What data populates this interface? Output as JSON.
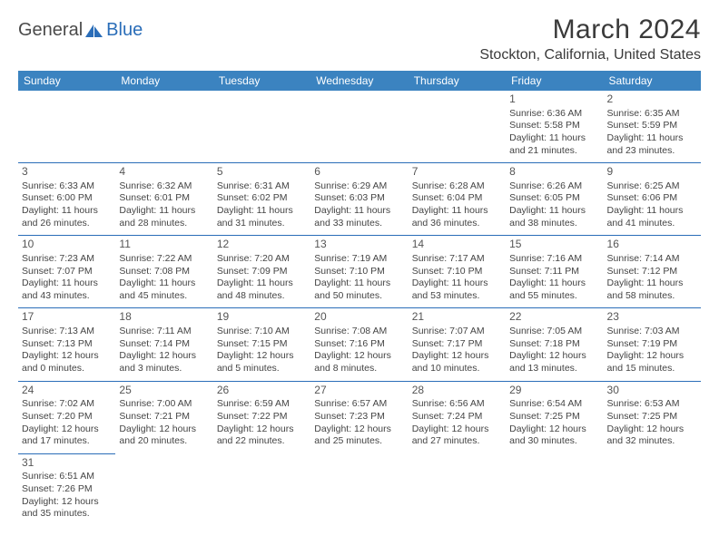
{
  "logo": {
    "part1": "General",
    "part2": "Blue"
  },
  "title": "March 2024",
  "location": "Stockton, California, United States",
  "colors": {
    "header_bg": "#3b83c0",
    "header_fg": "#ffffff",
    "row_border": "#2a6db8",
    "logo_gray": "#4a4a4a",
    "logo_blue": "#2a6db8",
    "text": "#444444"
  },
  "dayNames": [
    "Sunday",
    "Monday",
    "Tuesday",
    "Wednesday",
    "Thursday",
    "Friday",
    "Saturday"
  ],
  "weeks": [
    [
      null,
      null,
      null,
      null,
      null,
      {
        "n": "1",
        "sr": "Sunrise: 6:36 AM",
        "ss": "Sunset: 5:58 PM",
        "d1": "Daylight: 11 hours",
        "d2": "and 21 minutes."
      },
      {
        "n": "2",
        "sr": "Sunrise: 6:35 AM",
        "ss": "Sunset: 5:59 PM",
        "d1": "Daylight: 11 hours",
        "d2": "and 23 minutes."
      }
    ],
    [
      {
        "n": "3",
        "sr": "Sunrise: 6:33 AM",
        "ss": "Sunset: 6:00 PM",
        "d1": "Daylight: 11 hours",
        "d2": "and 26 minutes."
      },
      {
        "n": "4",
        "sr": "Sunrise: 6:32 AM",
        "ss": "Sunset: 6:01 PM",
        "d1": "Daylight: 11 hours",
        "d2": "and 28 minutes."
      },
      {
        "n": "5",
        "sr": "Sunrise: 6:31 AM",
        "ss": "Sunset: 6:02 PM",
        "d1": "Daylight: 11 hours",
        "d2": "and 31 minutes."
      },
      {
        "n": "6",
        "sr": "Sunrise: 6:29 AM",
        "ss": "Sunset: 6:03 PM",
        "d1": "Daylight: 11 hours",
        "d2": "and 33 minutes."
      },
      {
        "n": "7",
        "sr": "Sunrise: 6:28 AM",
        "ss": "Sunset: 6:04 PM",
        "d1": "Daylight: 11 hours",
        "d2": "and 36 minutes."
      },
      {
        "n": "8",
        "sr": "Sunrise: 6:26 AM",
        "ss": "Sunset: 6:05 PM",
        "d1": "Daylight: 11 hours",
        "d2": "and 38 minutes."
      },
      {
        "n": "9",
        "sr": "Sunrise: 6:25 AM",
        "ss": "Sunset: 6:06 PM",
        "d1": "Daylight: 11 hours",
        "d2": "and 41 minutes."
      }
    ],
    [
      {
        "n": "10",
        "sr": "Sunrise: 7:23 AM",
        "ss": "Sunset: 7:07 PM",
        "d1": "Daylight: 11 hours",
        "d2": "and 43 minutes."
      },
      {
        "n": "11",
        "sr": "Sunrise: 7:22 AM",
        "ss": "Sunset: 7:08 PM",
        "d1": "Daylight: 11 hours",
        "d2": "and 45 minutes."
      },
      {
        "n": "12",
        "sr": "Sunrise: 7:20 AM",
        "ss": "Sunset: 7:09 PM",
        "d1": "Daylight: 11 hours",
        "d2": "and 48 minutes."
      },
      {
        "n": "13",
        "sr": "Sunrise: 7:19 AM",
        "ss": "Sunset: 7:10 PM",
        "d1": "Daylight: 11 hours",
        "d2": "and 50 minutes."
      },
      {
        "n": "14",
        "sr": "Sunrise: 7:17 AM",
        "ss": "Sunset: 7:10 PM",
        "d1": "Daylight: 11 hours",
        "d2": "and 53 minutes."
      },
      {
        "n": "15",
        "sr": "Sunrise: 7:16 AM",
        "ss": "Sunset: 7:11 PM",
        "d1": "Daylight: 11 hours",
        "d2": "and 55 minutes."
      },
      {
        "n": "16",
        "sr": "Sunrise: 7:14 AM",
        "ss": "Sunset: 7:12 PM",
        "d1": "Daylight: 11 hours",
        "d2": "and 58 minutes."
      }
    ],
    [
      {
        "n": "17",
        "sr": "Sunrise: 7:13 AM",
        "ss": "Sunset: 7:13 PM",
        "d1": "Daylight: 12 hours",
        "d2": "and 0 minutes."
      },
      {
        "n": "18",
        "sr": "Sunrise: 7:11 AM",
        "ss": "Sunset: 7:14 PM",
        "d1": "Daylight: 12 hours",
        "d2": "and 3 minutes."
      },
      {
        "n": "19",
        "sr": "Sunrise: 7:10 AM",
        "ss": "Sunset: 7:15 PM",
        "d1": "Daylight: 12 hours",
        "d2": "and 5 minutes."
      },
      {
        "n": "20",
        "sr": "Sunrise: 7:08 AM",
        "ss": "Sunset: 7:16 PM",
        "d1": "Daylight: 12 hours",
        "d2": "and 8 minutes."
      },
      {
        "n": "21",
        "sr": "Sunrise: 7:07 AM",
        "ss": "Sunset: 7:17 PM",
        "d1": "Daylight: 12 hours",
        "d2": "and 10 minutes."
      },
      {
        "n": "22",
        "sr": "Sunrise: 7:05 AM",
        "ss": "Sunset: 7:18 PM",
        "d1": "Daylight: 12 hours",
        "d2": "and 13 minutes."
      },
      {
        "n": "23",
        "sr": "Sunrise: 7:03 AM",
        "ss": "Sunset: 7:19 PM",
        "d1": "Daylight: 12 hours",
        "d2": "and 15 minutes."
      }
    ],
    [
      {
        "n": "24",
        "sr": "Sunrise: 7:02 AM",
        "ss": "Sunset: 7:20 PM",
        "d1": "Daylight: 12 hours",
        "d2": "and 17 minutes."
      },
      {
        "n": "25",
        "sr": "Sunrise: 7:00 AM",
        "ss": "Sunset: 7:21 PM",
        "d1": "Daylight: 12 hours",
        "d2": "and 20 minutes."
      },
      {
        "n": "26",
        "sr": "Sunrise: 6:59 AM",
        "ss": "Sunset: 7:22 PM",
        "d1": "Daylight: 12 hours",
        "d2": "and 22 minutes."
      },
      {
        "n": "27",
        "sr": "Sunrise: 6:57 AM",
        "ss": "Sunset: 7:23 PM",
        "d1": "Daylight: 12 hours",
        "d2": "and 25 minutes."
      },
      {
        "n": "28",
        "sr": "Sunrise: 6:56 AM",
        "ss": "Sunset: 7:24 PM",
        "d1": "Daylight: 12 hours",
        "d2": "and 27 minutes."
      },
      {
        "n": "29",
        "sr": "Sunrise: 6:54 AM",
        "ss": "Sunset: 7:25 PM",
        "d1": "Daylight: 12 hours",
        "d2": "and 30 minutes."
      },
      {
        "n": "30",
        "sr": "Sunrise: 6:53 AM",
        "ss": "Sunset: 7:25 PM",
        "d1": "Daylight: 12 hours",
        "d2": "and 32 minutes."
      }
    ],
    [
      {
        "n": "31",
        "sr": "Sunrise: 6:51 AM",
        "ss": "Sunset: 7:26 PM",
        "d1": "Daylight: 12 hours",
        "d2": "and 35 minutes."
      },
      null,
      null,
      null,
      null,
      null,
      null
    ]
  ]
}
